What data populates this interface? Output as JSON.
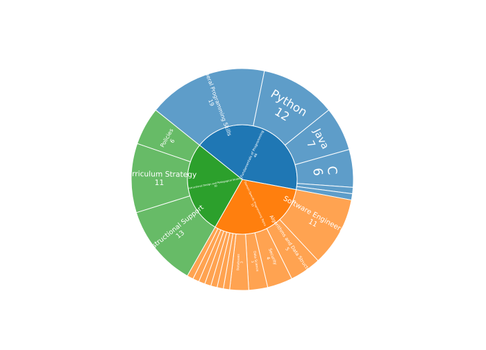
{
  "chart_data": {
    "type": "sunburst",
    "colors": {
      "blue": "#1f77b4",
      "orange": "#ff7f0e",
      "green": "#2ca02c"
    },
    "root": [
      {
        "label": "Fundamentals of Programming",
        "value": 46,
        "color": "blue",
        "children": [
          {
            "label": "General Programming Skills",
            "value": 19
          },
          {
            "label": "Python",
            "value": 12
          },
          {
            "label": "Java",
            "value": 7
          },
          {
            "label": "C",
            "value": 6
          },
          {
            "label": "",
            "value": 1
          },
          {
            "label": "",
            "value": 1
          }
        ]
      },
      {
        "label": "Domain-Specific Programming Topics",
        "value": 33,
        "color": "orange",
        "children": [
          {
            "label": "Software Engineering",
            "value": 11
          },
          {
            "label": "Algorithms and Data Structures",
            "value": 5
          },
          {
            "label": "Security",
            "value": 4
          },
          {
            "label": "Data Science",
            "value": 3
          },
          {
            "label": "Databases",
            "value": 3
          },
          {
            "label": "",
            "value": 1
          },
          {
            "label": "",
            "value": 1
          },
          {
            "label": "",
            "value": 1
          },
          {
            "label": "",
            "value": 1
          },
          {
            "label": "",
            "value": 1
          },
          {
            "label": "",
            "value": 1
          },
          {
            "label": "",
            "value": 1
          }
        ]
      },
      {
        "label": "Instructional Design and Pedagogical Strategy",
        "value": 30,
        "color": "green",
        "children": [
          {
            "label": "Instructional Support",
            "value": 13
          },
          {
            "label": "Curriculum Strategy",
            "value": 11
          },
          {
            "label": "Policies",
            "value": 6
          }
        ]
      }
    ]
  }
}
